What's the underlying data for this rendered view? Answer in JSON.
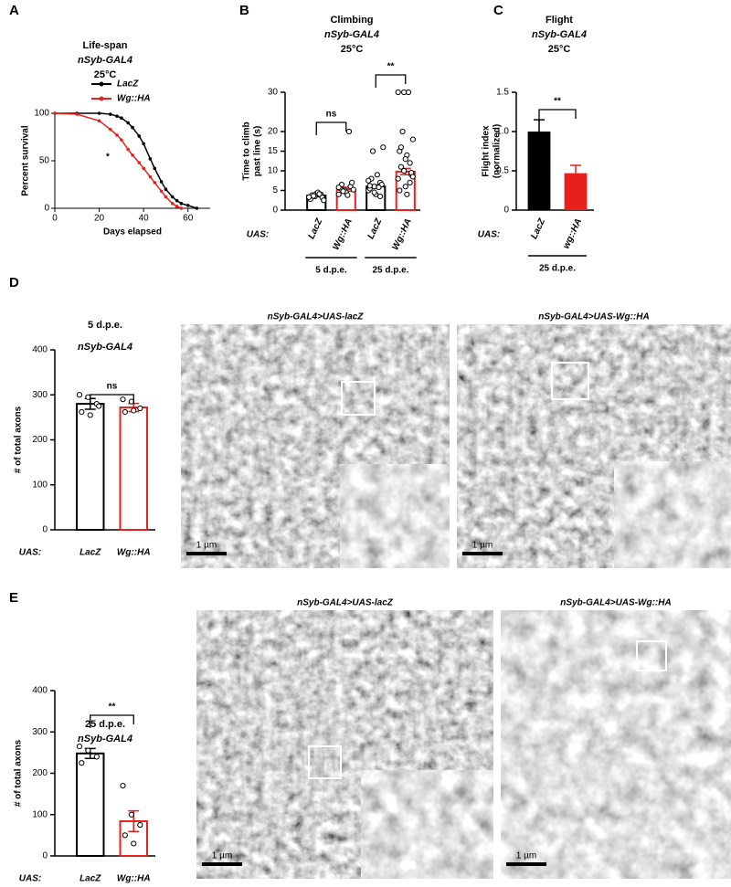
{
  "figure": {
    "panel_labels": [
      "A",
      "B",
      "C",
      "D",
      "E"
    ],
    "micrographs": [
      {
        "caption": "nSyb-GAL4>UAS-lacZ",
        "scale": "1 µm"
      },
      {
        "caption": "nSyb-GAL4>UAS-Wg::HA",
        "scale": "1 µm"
      },
      {
        "caption": "nSyb-GAL4>UAS-lacZ",
        "scale": "1 µm"
      },
      {
        "caption": "nSyb-GAL4>UAS-Wg::HA",
        "scale": "1 µm"
      }
    ]
  },
  "chart_data": [
    {
      "type": "line",
      "title": "Life-span",
      "subtitle": "nSyb-GAL4",
      "condition": "25°C",
      "x_label": "Days elapsed",
      "y_label": "Percent survival",
      "annotation": "*",
      "x": [
        0,
        10,
        20,
        25,
        28,
        30,
        33,
        35,
        38,
        40,
        43,
        45,
        48,
        50,
        53,
        55,
        57,
        60,
        64
      ],
      "series": [
        {
          "name": "LacZ",
          "color": "#000000",
          "values": [
            100,
            100,
            100,
            99,
            97,
            95,
            90,
            85,
            76,
            68,
            52,
            42,
            28,
            20,
            12,
            8,
            5,
            3,
            0
          ]
        },
        {
          "name": "Wg::HA",
          "color": "#e8201c",
          "values": [
            100,
            99,
            92,
            83,
            77,
            72,
            62,
            56,
            48,
            42,
            33,
            27,
            18,
            12,
            5,
            2,
            0,
            null,
            null
          ]
        }
      ],
      "xlim": [
        0,
        70
      ],
      "xticks": [
        0,
        20,
        40,
        60
      ],
      "ylim": [
        0,
        100
      ],
      "yticks": [
        0,
        50,
        100
      ]
    },
    {
      "type": "bar",
      "title": "Climbing",
      "subtitle": "nSyb-GAL4",
      "condition": "25°C",
      "y_label": [
        "Time to climb",
        "past line (s)"
      ],
      "row_label": "UAS:",
      "categories": [
        "LacZ",
        "Wg::HA",
        "LacZ",
        "Wg::HA"
      ],
      "groups": [
        "5 d.p.e.",
        "25 d.p.e."
      ],
      "values": [
        3.7,
        5.3,
        6.0,
        9.8
      ],
      "errors": [
        0.3,
        0.5,
        0.4,
        0.8
      ],
      "colors": [
        "#000000",
        "#e8201c",
        "#000000",
        "#e8201c"
      ],
      "bar_style": "open",
      "points": [
        [
          3,
          3.5,
          4,
          2.8,
          4.2,
          3.2,
          3.8,
          4.5,
          2.5,
          3.6,
          4.1,
          3.3
        ],
        [
          4,
          5,
          6,
          5.5,
          4.5,
          7,
          6.5,
          3.8,
          5.2,
          4.8,
          20,
          5.8
        ],
        [
          5,
          6,
          7,
          5.5,
          4,
          6.5,
          8,
          9,
          16,
          15,
          5.8,
          7.5,
          4.5,
          3.5,
          6.2
        ],
        [
          8,
          10,
          12,
          15,
          6,
          9,
          11,
          14,
          18,
          20,
          30,
          30,
          30,
          7,
          5,
          13,
          9.5,
          16,
          4,
          8.5
        ]
      ],
      "significance": [
        "ns",
        "**"
      ],
      "ylim": [
        0,
        30
      ],
      "yticks": [
        0,
        5,
        10,
        15,
        20,
        30
      ]
    },
    {
      "type": "bar",
      "title": "Flight",
      "subtitle": "nSyb-GAL4",
      "condition": "25°C",
      "y_label": [
        "Flight index",
        "(normalized)"
      ],
      "row_label": "UAS:",
      "categories": [
        "LacZ",
        "wg::HA"
      ],
      "groups": [
        "25 d.p.e."
      ],
      "values": [
        1.0,
        0.47
      ],
      "errors": [
        0.15,
        0.1
      ],
      "colors": [
        "#000000",
        "#e8201c"
      ],
      "bar_style": "solid",
      "significance": [
        "**"
      ],
      "ylim": [
        0,
        1.5
      ],
      "yticks": [
        0,
        0.5,
        {
          "value": 1,
          "label": "1.0"
        },
        1.5
      ]
    },
    {
      "type": "bar",
      "title": "5 d.p.e.",
      "subtitle": "nSyb-GAL4",
      "y_label": "# of total axons",
      "row_label": "UAS:",
      "categories": [
        "LacZ",
        "Wg::HA"
      ],
      "values": [
        280,
        272
      ],
      "errors": [
        12,
        9
      ],
      "colors": [
        "#000000",
        "#e8201c"
      ],
      "bar_style": "open",
      "points": [
        [
          300,
          295,
          280,
          262,
          255,
          275
        ],
        [
          290,
          285,
          270,
          262,
          265
        ]
      ],
      "significance": [
        "ns"
      ],
      "ylim": [
        0,
        400
      ],
      "yticks": [
        0,
        100,
        200,
        300,
        400
      ]
    },
    {
      "type": "bar",
      "title": "25 d.p.e.",
      "subtitle": "nSyb-GAL4",
      "y_label": "# of total axons",
      "row_label": "UAS:",
      "categories": [
        "LacZ",
        "Wg::HA"
      ],
      "values": [
        248,
        84
      ],
      "errors": [
        12,
        25
      ],
      "colors": [
        "#000000",
        "#e8201c"
      ],
      "bar_style": "open",
      "points": [
        [
          265,
          255,
          240,
          225
        ],
        [
          170,
          100,
          75,
          50,
          30
        ]
      ],
      "significance": [
        "**"
      ],
      "ylim": [
        0,
        400
      ],
      "yticks": [
        0,
        100,
        200,
        300,
        400
      ]
    }
  ]
}
